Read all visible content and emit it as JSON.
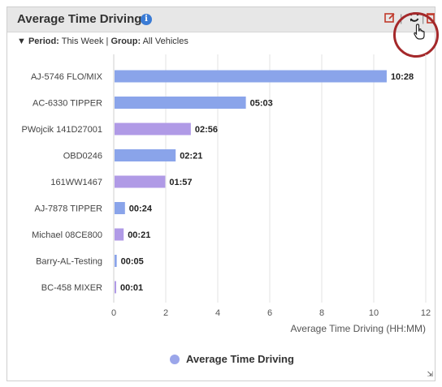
{
  "widget": {
    "title": "Average Time Driving",
    "info_icon": "info-icon",
    "filter_label_period": "Period:",
    "filter_value_period": "This Week",
    "filter_sep": "|",
    "filter_label_group": "Group:",
    "filter_value_group": "All Vehicles",
    "toolbar": {
      "edit_icon": "edit-icon",
      "refresh_icon": "refresh-icon",
      "delete_icon": "delete-icon",
      "cursor_icon": "hand-pointer-icon",
      "highlight_color": "#a4282a"
    }
  },
  "chart_data": {
    "type": "bar",
    "orientation": "horizontal",
    "categories": [
      "AJ-5746 FLO/MIX",
      "AC-6330 TIPPER",
      "PWojcik 141D27001",
      "OBD0246",
      "161WW1467",
      "AJ-7878 TIPPER",
      "Michael 08CE800",
      "Barry-AL-Testing",
      "BC-458 MIXER"
    ],
    "values": [
      10.467,
      5.05,
      2.933,
      2.35,
      1.95,
      0.4,
      0.35,
      0.083,
      0.017
    ],
    "labels": [
      "10:28",
      "05:03",
      "02:56",
      "02:21",
      "01:57",
      "00:24",
      "00:21",
      "00:05",
      "00:01"
    ],
    "colors": [
      "#8aa4ea",
      "#8aa4ea",
      "#b09ae6",
      "#8aa4ea",
      "#b09ae6",
      "#8aa4ea",
      "#b09ae6",
      "#8aa4ea",
      "#b09ae6"
    ],
    "xticks": [
      "0",
      "2",
      "4",
      "6",
      "8",
      "10",
      "12"
    ],
    "xlim": [
      0,
      12
    ],
    "xlabel": "Average Time Driving (HH:MM)",
    "legend": "Average Time Driving",
    "legend_color": "#9ba6ea",
    "grid": true
  }
}
